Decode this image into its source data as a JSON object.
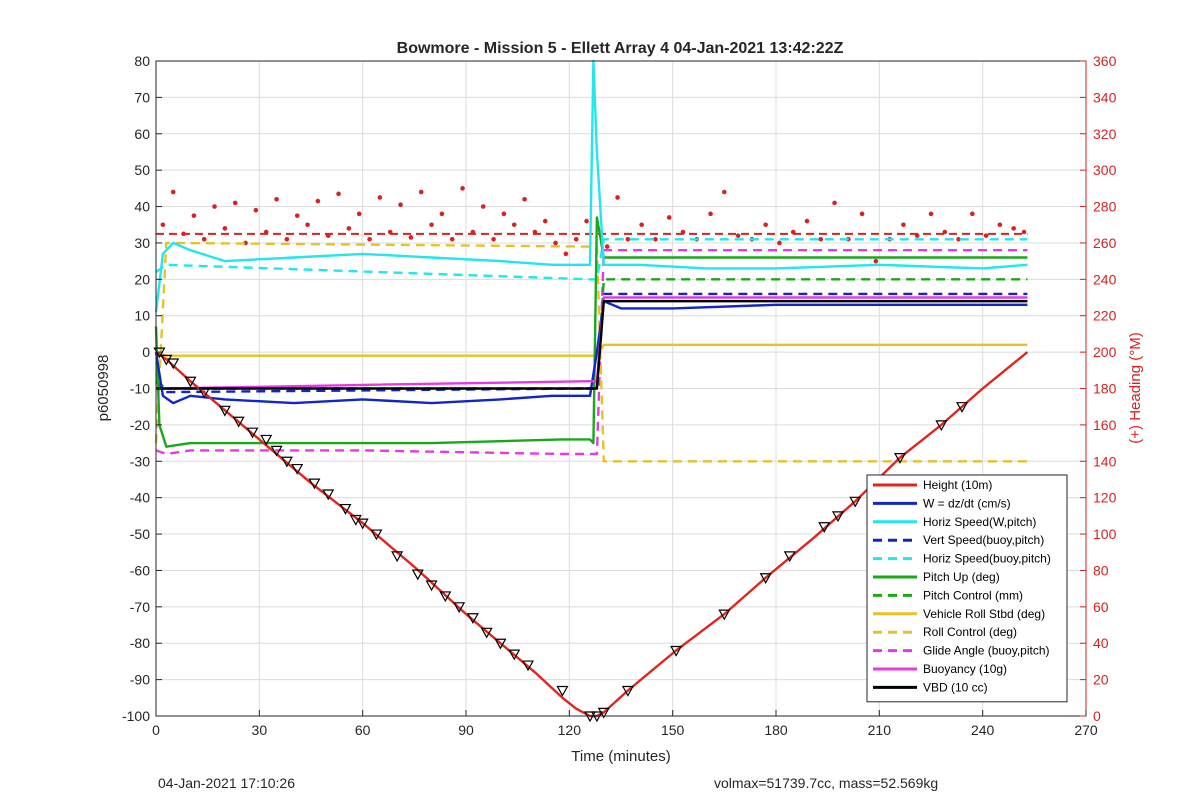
{
  "footer": {
    "timestamp": "04-Jan-2021 17:10:26",
    "summary": "volmax=51739.7cc, mass=52.569kg"
  },
  "chart_data": {
    "type": "line",
    "title": "Bowmore - Mission 5 - Ellett Array 4 04-Jan-2021 13:42:22Z",
    "xlabel": "Time (minutes)",
    "ylabel": "p6050998",
    "y2label": "(+) Heading (°M)",
    "xlim": [
      0,
      270
    ],
    "ylim": [
      -100,
      80
    ],
    "y2lim": [
      0,
      360
    ],
    "xticks": [
      0,
      30,
      60,
      90,
      120,
      150,
      180,
      210,
      240,
      270
    ],
    "yticks": [
      -100,
      -90,
      -80,
      -70,
      -60,
      -50,
      -40,
      -30,
      -20,
      -10,
      0,
      10,
      20,
      30,
      40,
      50,
      60,
      70,
      80
    ],
    "y2ticks": [
      0,
      20,
      40,
      60,
      80,
      100,
      120,
      140,
      160,
      180,
      200,
      220,
      240,
      260,
      280,
      300,
      320,
      340,
      360
    ],
    "grid": true,
    "legend_position": "bottom-right",
    "series": [
      {
        "name": "Height (10m)",
        "color": "#e0251d",
        "style": "solid",
        "x": [
          0,
          3,
          10,
          20,
          30,
          45,
          60,
          75,
          90,
          100,
          110,
          118,
          122,
          126,
          128,
          130,
          137,
          151,
          165,
          177,
          191,
          203,
          216,
          228,
          240,
          253
        ],
        "values": [
          0,
          -2,
          -8,
          -16,
          -24,
          -36,
          -47,
          -59,
          -72,
          -80,
          -88,
          -95,
          -98,
          -100,
          -100,
          -99,
          -93,
          -82,
          -72,
          -62,
          -51,
          -41,
          -29,
          -20,
          -10,
          0
        ]
      },
      {
        "name": "W = dz/dt (cm/s)",
        "color": "#1026c8",
        "style": "solid",
        "x": [
          0,
          2,
          5,
          10,
          20,
          40,
          60,
          80,
          100,
          115,
          126,
          128,
          130,
          135,
          150,
          180,
          210,
          240,
          253
        ],
        "values": [
          0,
          -12,
          -14,
          -12,
          -13,
          -14,
          -13,
          -14,
          -13,
          -12,
          -12,
          0,
          14,
          12,
          12,
          13,
          13,
          13,
          13
        ]
      },
      {
        "name": "Horiz Speed(W,pitch)",
        "color": "#22e6ee",
        "style": "solid",
        "x": [
          0,
          2,
          5,
          10,
          20,
          40,
          60,
          80,
          100,
          115,
          126,
          127,
          128,
          130,
          140,
          160,
          180,
          210,
          240,
          253
        ],
        "values": [
          11,
          27,
          30,
          28,
          25,
          26,
          27,
          26,
          25,
          24,
          24,
          80,
          55,
          24,
          24,
          23,
          23,
          24,
          23,
          24
        ]
      },
      {
        "name": "Vert Speed(buoy,pitch)",
        "color": "#1026c8",
        "style": "dashed",
        "x": [
          0,
          3,
          126,
          128,
          130,
          253
        ],
        "values": [
          -8,
          -11,
          -10,
          -10,
          16,
          16
        ]
      },
      {
        "name": "Horiz Speed(buoy,pitch)",
        "color": "#22e6ee",
        "style": "dashed",
        "x": [
          0,
          3,
          126,
          128,
          130,
          253
        ],
        "values": [
          22,
          24,
          20,
          20,
          31,
          31
        ]
      },
      {
        "name": "Pitch Up (deg)",
        "color": "#1aa81a",
        "style": "solid",
        "x": [
          0,
          1,
          3,
          10,
          40,
          80,
          118,
          126,
          127,
          128,
          130,
          253
        ],
        "values": [
          7,
          -20,
          -26,
          -25,
          -25,
          -25,
          -24,
          -24,
          -25,
          37,
          26,
          26
        ]
      },
      {
        "name": "Pitch Control (mm)",
        "color": "#1aa81a",
        "style": "dashed",
        "x": [
          0,
          3,
          126,
          128,
          130,
          253
        ],
        "values": [
          -8,
          -10,
          -10,
          -10,
          20,
          20
        ]
      },
      {
        "name": "Vehicle Roll Stbd (deg)",
        "color": "#e6c228",
        "style": "solid",
        "x": [
          0,
          3,
          126,
          128,
          130,
          253
        ],
        "values": [
          0,
          -1,
          -1,
          -1,
          2,
          2
        ]
      },
      {
        "name": "Roll Control (deg)",
        "color": "#e6c228",
        "style": "dashed",
        "x": [
          0,
          3,
          126,
          128,
          130,
          253
        ],
        "values": [
          -25,
          30,
          29,
          29,
          -30,
          -30
        ]
      },
      {
        "name": "Glide Angle (buoy,pitch)",
        "color": "#e639e6",
        "style": "dashed",
        "x": [
          0,
          3,
          10,
          60,
          118,
          126,
          128,
          130,
          253
        ],
        "values": [
          -27,
          -28,
          -27,
          -27,
          -28,
          -28,
          -28,
          28,
          28
        ]
      },
      {
        "name": "Buoyancy (10g)",
        "color": "#e639e6",
        "style": "solid",
        "x": [
          0,
          3,
          60,
          126,
          128,
          130,
          253
        ],
        "values": [
          -10,
          -10,
          -9,
          -8,
          -8,
          15,
          15
        ]
      },
      {
        "name": "VBD (10 cc)",
        "color": "#000000",
        "style": "solid",
        "x": [
          0,
          3,
          60,
          126,
          128,
          130,
          253
        ],
        "values": [
          -10,
          -10,
          -10,
          -10,
          -10,
          14,
          14
        ]
      }
    ],
    "heading": {
      "axis": "right",
      "color": "#d62222",
      "mean_line": 265,
      "x": [
        2,
        5,
        8,
        11,
        14,
        17,
        20,
        23,
        26,
        29,
        32,
        35,
        38,
        41,
        44,
        47,
        50,
        53,
        56,
        59,
        62,
        65,
        68,
        71,
        74,
        77,
        80,
        83,
        86,
        89,
        92,
        95,
        98,
        101,
        104,
        107,
        110,
        113,
        116,
        119,
        122,
        125,
        131,
        134,
        137,
        141,
        145,
        149,
        153,
        157,
        161,
        165,
        169,
        173,
        177,
        181,
        185,
        189,
        193,
        197,
        201,
        205,
        209,
        213,
        217,
        221,
        225,
        229,
        233,
        237,
        241,
        245,
        249,
        252
      ],
      "values": [
        270,
        288,
        265,
        275,
        262,
        280,
        268,
        282,
        260,
        278,
        266,
        284,
        262,
        275,
        270,
        283,
        264,
        287,
        268,
        276,
        262,
        285,
        266,
        281,
        263,
        288,
        270,
        276,
        262,
        290,
        266,
        280,
        262,
        276,
        270,
        284,
        266,
        272,
        260,
        254,
        262,
        272,
        258,
        285,
        262,
        270,
        262,
        274,
        266,
        262,
        276,
        288,
        264,
        262,
        270,
        260,
        266,
        272,
        262,
        282,
        262,
        276,
        250,
        262,
        270,
        264,
        276,
        266,
        262,
        276,
        264,
        270,
        268,
        266
      ]
    },
    "markers": {
      "series": "Height (10m)",
      "x": [
        1,
        3,
        5,
        10,
        14,
        20,
        24,
        28,
        32,
        35,
        38,
        41,
        46,
        50,
        55,
        58,
        60,
        64,
        70,
        76,
        80,
        84,
        88,
        92,
        96,
        100,
        104,
        108,
        118,
        126,
        128,
        130,
        137,
        151,
        165,
        177,
        184,
        194,
        198,
        203,
        216,
        228,
        234
      ],
      "values": [
        0,
        -2,
        -3,
        -8,
        -11,
        -16,
        -19,
        -22,
        -24,
        -27,
        -30,
        -32,
        -36,
        -39,
        -43,
        -46,
        -47,
        -50,
        -56,
        -61,
        -64,
        -67,
        -70,
        -73,
        -77,
        -80,
        -83,
        -86,
        -93,
        -100,
        -100,
        -99,
        -93,
        -82,
        -72,
        -62,
        -56,
        -48,
        -45,
        -41,
        -29,
        -20,
        -15
      ]
    }
  }
}
